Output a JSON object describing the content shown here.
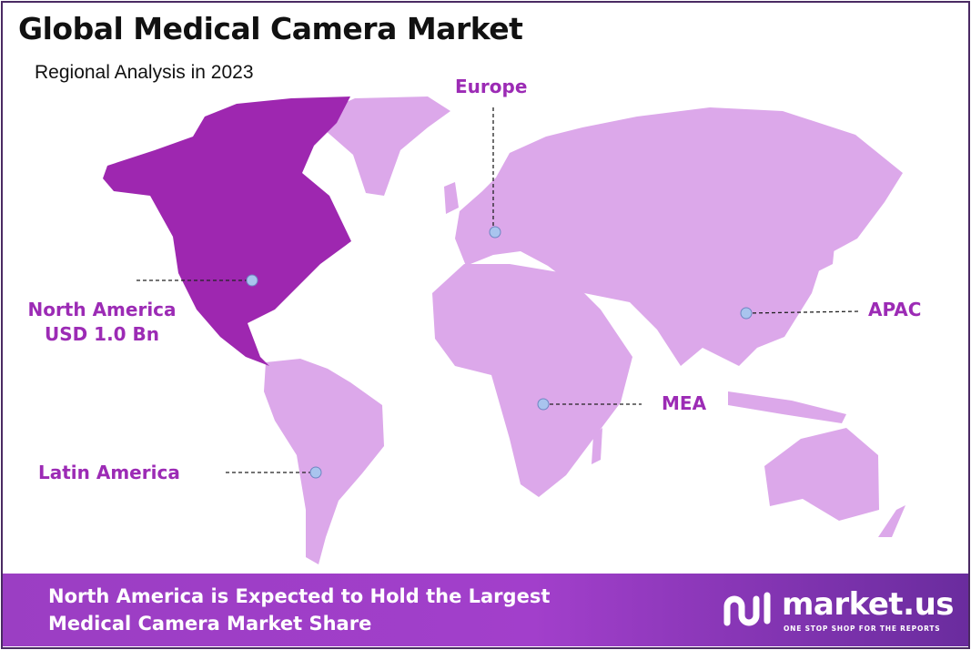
{
  "header": {
    "title": "Global Medical Camera Market",
    "subtitle": "Regional Analysis in 2023"
  },
  "colors": {
    "highlight_region": "#9e27b0",
    "other_regions": "#dca8ea",
    "label": "#9c2bb5",
    "marker": "#a9c4ee",
    "frame": "#4a2a63"
  },
  "map": {
    "highlighted_region": "North America",
    "regions": [
      {
        "name": "North America",
        "value_label": "USD 1.0 Bn"
      },
      {
        "name": "Europe"
      },
      {
        "name": "APAC"
      },
      {
        "name": "MEA"
      },
      {
        "name": "Latin America"
      }
    ]
  },
  "banner": {
    "line1": "North America is Expected to Hold the Largest",
    "line2": "Medical Camera Market Share"
  },
  "logo": {
    "name": "market.us",
    "tagline": "ONE STOP SHOP FOR THE REPORTS"
  }
}
